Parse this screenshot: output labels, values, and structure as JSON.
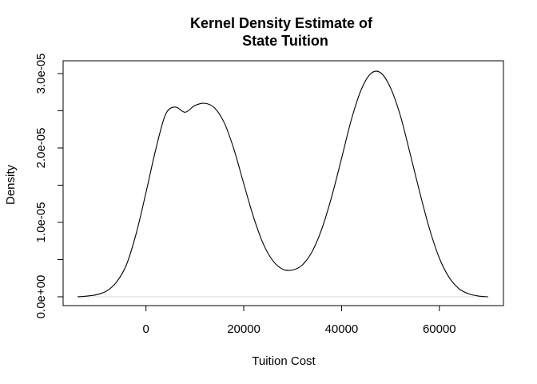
{
  "chart_data": {
    "type": "line",
    "title": "Kernel Density Estimate of\nState Tuition",
    "title_lines": [
      "Kernel Density Estimate of",
      "State Tuition"
    ],
    "xlabel": "Tuition Cost",
    "ylabel": "Density",
    "xlim": [
      -14000,
      70000
    ],
    "ylim": [
      0,
      3.01e-05
    ],
    "x_ticks": [
      0,
      20000,
      40000,
      60000
    ],
    "x_tick_labels": [
      "0",
      "20000",
      "40000",
      "60000"
    ],
    "y_ticks": [
      0,
      5e-06,
      1e-05,
      1.5e-05,
      2e-05,
      2.5e-05,
      3e-05
    ],
    "y_tick_labels": [
      "0.0e+00",
      "",
      "1.0e-05",
      "",
      "2.0e-05",
      "",
      "3.0e-05"
    ],
    "grid": false,
    "legend": "none",
    "series": [
      {
        "x": [
          -14000,
          -12000,
          -10000,
          -8000,
          -6000,
          -4000,
          -2000,
          0,
          2000,
          4000,
          6000,
          8000,
          10000,
          12000,
          14000,
          16000,
          18000,
          20000,
          22000,
          24000,
          26000,
          28000,
          30000,
          32000,
          34000,
          36000,
          38000,
          40000,
          42000,
          44000,
          46000,
          48000,
          50000,
          52000,
          54000,
          56000,
          58000,
          60000,
          62000,
          64000,
          66000,
          68000,
          70000
        ],
        "y": [
          0.0,
          1e-07,
          3e-07,
          8e-07,
          2e-06,
          4.3e-06,
          8.5e-06,
          1.4e-05,
          1.98e-05,
          2.45e-05,
          2.55e-05,
          2.48e-05,
          2.57e-05,
          2.6e-05,
          2.54e-05,
          2.34e-05,
          1.98e-05,
          1.52e-05,
          1.07e-05,
          7.1e-06,
          4.8e-06,
          3.7e-06,
          3.6e-06,
          4.3e-06,
          6.1e-06,
          9.2e-06,
          1.35e-05,
          1.86e-05,
          2.38e-05,
          2.78e-05,
          3e-05,
          3.01e-05,
          2.81e-05,
          2.44e-05,
          1.93e-05,
          1.4e-05,
          9.1e-06,
          5.2e-06,
          2.6e-06,
          1.1e-06,
          4e-07,
          1e-07,
          0.0
        ]
      }
    ]
  }
}
